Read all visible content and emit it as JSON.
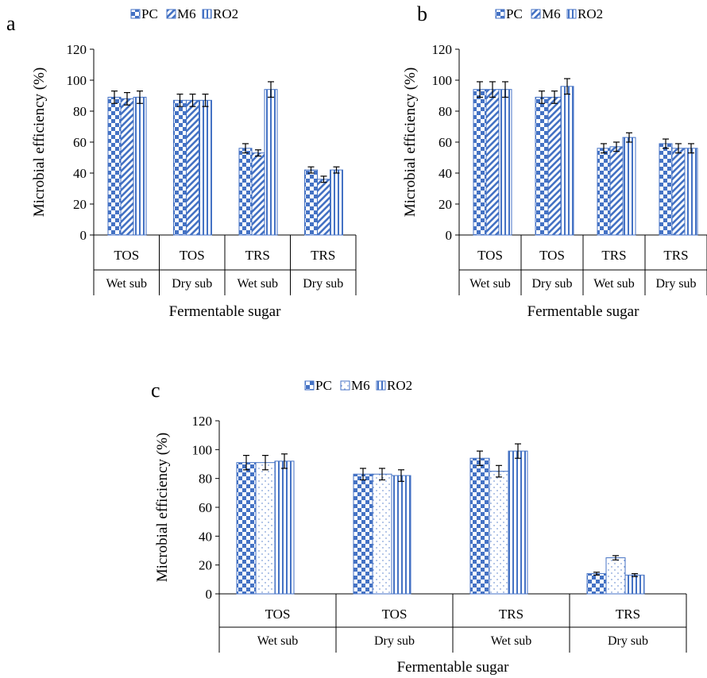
{
  "chart_data": [
    {
      "type": "bar",
      "panel_label": "a",
      "title": "",
      "xlabel": "Fermentable sugar",
      "ylabel": "Microbial efficiency (%)",
      "ylim": [
        0,
        120
      ],
      "yticks": [
        0,
        20,
        40,
        60,
        80,
        100,
        120
      ],
      "grid": false,
      "legend_position": "top",
      "categories": [
        "TOS",
        "TOS",
        "TRS",
        "TRS"
      ],
      "category_groups": [
        "Wet sub",
        "Dry sub",
        "Wet sub",
        "Dry sub"
      ],
      "series": [
        {
          "name": "PC",
          "values": [
            89,
            87,
            56,
            42
          ],
          "errors": [
            4,
            4,
            3,
            2
          ],
          "pattern": "checker"
        },
        {
          "name": "M6",
          "values": [
            88,
            87,
            53,
            36
          ],
          "errors": [
            4,
            4,
            2,
            2
          ],
          "pattern": "diagonal"
        },
        {
          "name": "RO2",
          "values": [
            89,
            87,
            94,
            42
          ],
          "errors": [
            4,
            4,
            5,
            2
          ],
          "pattern": "vertical"
        }
      ]
    },
    {
      "type": "bar",
      "panel_label": "b",
      "title": "",
      "xlabel": "Fermentable sugar",
      "ylabel": "Microbial efficiency (%)",
      "ylim": [
        0,
        120
      ],
      "yticks": [
        0,
        20,
        40,
        60,
        80,
        100,
        120
      ],
      "grid": false,
      "legend_position": "top",
      "categories": [
        "TOS",
        "TOS",
        "TRS",
        "TRS"
      ],
      "category_groups": [
        "Wet sub",
        "Dry sub",
        "Wet sub",
        "Dry sub"
      ],
      "series": [
        {
          "name": "PC",
          "values": [
            94,
            89,
            56,
            59
          ],
          "errors": [
            5,
            4,
            3,
            3
          ],
          "pattern": "checker"
        },
        {
          "name": "M6",
          "values": [
            94,
            89,
            57,
            56
          ],
          "errors": [
            5,
            4,
            3,
            3
          ],
          "pattern": "diagonal"
        },
        {
          "name": "RO2",
          "values": [
            94,
            96,
            63,
            56
          ],
          "errors": [
            5,
            5,
            3,
            3
          ],
          "pattern": "vertical"
        }
      ]
    },
    {
      "type": "bar",
      "panel_label": "c",
      "title": "",
      "xlabel": "Fermentable sugar",
      "ylabel": "Microbial efficiency (%)",
      "ylim": [
        0,
        120
      ],
      "yticks": [
        0,
        20,
        40,
        60,
        80,
        100,
        120
      ],
      "grid": false,
      "legend_position": "top",
      "categories": [
        "TOS",
        "TOS",
        "TRS",
        "TRS"
      ],
      "category_groups": [
        "Wet sub",
        "Dry sub",
        "Wet sub",
        "Dry sub"
      ],
      "series": [
        {
          "name": "PC",
          "values": [
            91,
            83,
            94,
            14
          ],
          "errors": [
            5,
            4,
            5,
            1
          ],
          "pattern": "checker"
        },
        {
          "name": "M6",
          "values": [
            91,
            83,
            85,
            25
          ],
          "errors": [
            5,
            4,
            4,
            1.5
          ],
          "pattern": "dots"
        },
        {
          "name": "RO2",
          "values": [
            92,
            82,
            99,
            13
          ],
          "errors": [
            5,
            4,
            5,
            1
          ],
          "pattern": "vertical"
        }
      ]
    }
  ],
  "colors": {
    "bar_fill": "#4472c4",
    "bar_stroke": "#4472c4",
    "axis": "#000000",
    "background": "#ffffff"
  }
}
